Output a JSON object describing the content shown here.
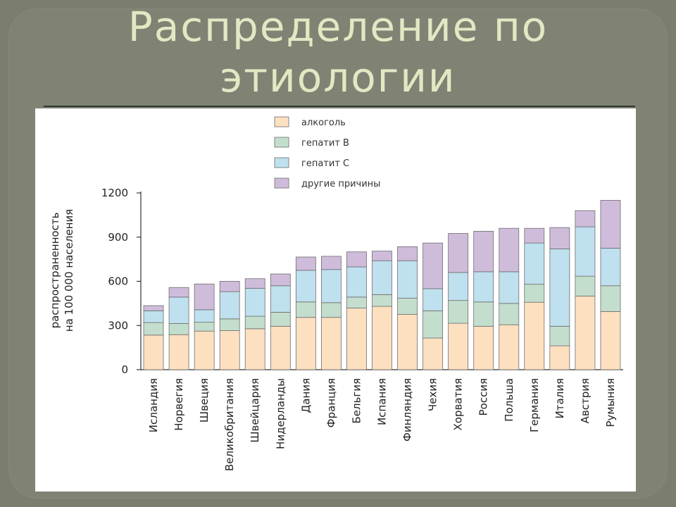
{
  "slide": {
    "title_line1": "Распределение по",
    "title_line2": "этиологии"
  },
  "colors": {
    "background": "#7b7d6e",
    "title": "#e3e7c3",
    "alcohol": "#fde0c0",
    "hepatitis_b": "#c4decd",
    "hepatitis_c": "#bfe0ee",
    "other": "#cfbcdb",
    "stroke": "#6d6d6d"
  },
  "chart_data": {
    "type": "bar",
    "stacked": true,
    "title": "",
    "xlabel": "",
    "ylabel_line1": "распространенность",
    "ylabel_line2": "на 100 000 населения",
    "ylim": [
      0,
      1200
    ],
    "yticks": [
      0,
      300,
      600,
      900,
      1200
    ],
    "legend_position": "top",
    "categories": [
      "Исландия",
      "Норвегия",
      "Швеция",
      "Великобритания",
      "Швейцария",
      "Нидерланды",
      "Дания",
      "Франция",
      "Бельгия",
      "Испания",
      "Финляндия",
      "Чехия",
      "Хорватия",
      "Россия",
      "Польша",
      "Германия",
      "Италия",
      "Австрия",
      "Румыния"
    ],
    "series": [
      {
        "name": "алкоголь",
        "color": "#fde0c0",
        "values": [
          235,
          238,
          262,
          265,
          278,
          295,
          355,
          355,
          418,
          430,
          375,
          215,
          315,
          295,
          305,
          458,
          162,
          500,
          395
        ]
      },
      {
        "name": "гепатит B",
        "color": "#c4decd",
        "values": [
          85,
          75,
          60,
          80,
          85,
          95,
          105,
          100,
          75,
          80,
          110,
          185,
          155,
          165,
          145,
          122,
          133,
          135,
          175
        ]
      },
      {
        "name": "гепатит C",
        "color": "#bfe0ee",
        "values": [
          80,
          180,
          85,
          185,
          190,
          180,
          215,
          225,
          205,
          230,
          255,
          150,
          190,
          205,
          215,
          280,
          525,
          335,
          255
        ]
      },
      {
        "name": "другие причины",
        "color": "#cfbcdb",
        "values": [
          35,
          65,
          175,
          70,
          65,
          80,
          90,
          90,
          102,
          65,
          95,
          310,
          265,
          275,
          295,
          100,
          145,
          110,
          325
        ]
      }
    ]
  }
}
